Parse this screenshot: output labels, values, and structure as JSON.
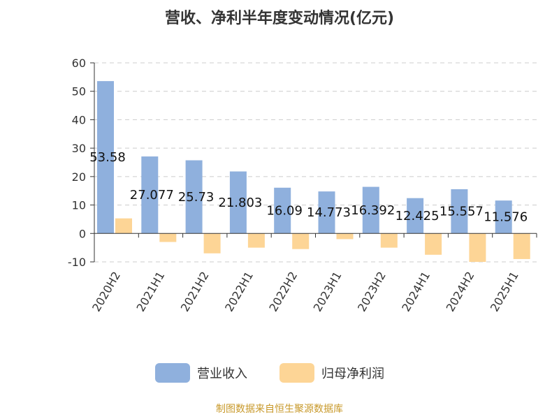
{
  "chart_data": {
    "type": "bar",
    "title": "营收、净利半年度变动情况(亿元)",
    "categories": [
      "2020H2",
      "2021H1",
      "2021H2",
      "2022H1",
      "2022H2",
      "2023H1",
      "2023H2",
      "2024H1",
      "2024H2",
      "2025H1"
    ],
    "series": [
      {
        "name": "营业收入",
        "color": "#8fb0dd",
        "values": [
          53.58,
          27.077,
          25.73,
          21.803,
          16.09,
          14.773,
          16.392,
          12.425,
          15.557,
          11.576
        ],
        "labels": [
          "53.58",
          "27.077",
          "25.73",
          "21.803",
          "16.09",
          "14.773",
          "16.392",
          "12.425",
          "15.557",
          "11.576"
        ]
      },
      {
        "name": "归母净利润",
        "color": "#fdd596",
        "values": [
          5.3,
          -3.0,
          -7.0,
          -5.0,
          -5.5,
          -2.0,
          -5.0,
          -7.5,
          -10.0,
          -9.0
        ]
      }
    ],
    "ylim": [
      -10,
      60
    ],
    "yticks": [
      60,
      50,
      40,
      30,
      20,
      10,
      0,
      -10
    ],
    "grid": true,
    "legend": "bottom"
  },
  "source": "制图数据来自恒生聚源数据库"
}
